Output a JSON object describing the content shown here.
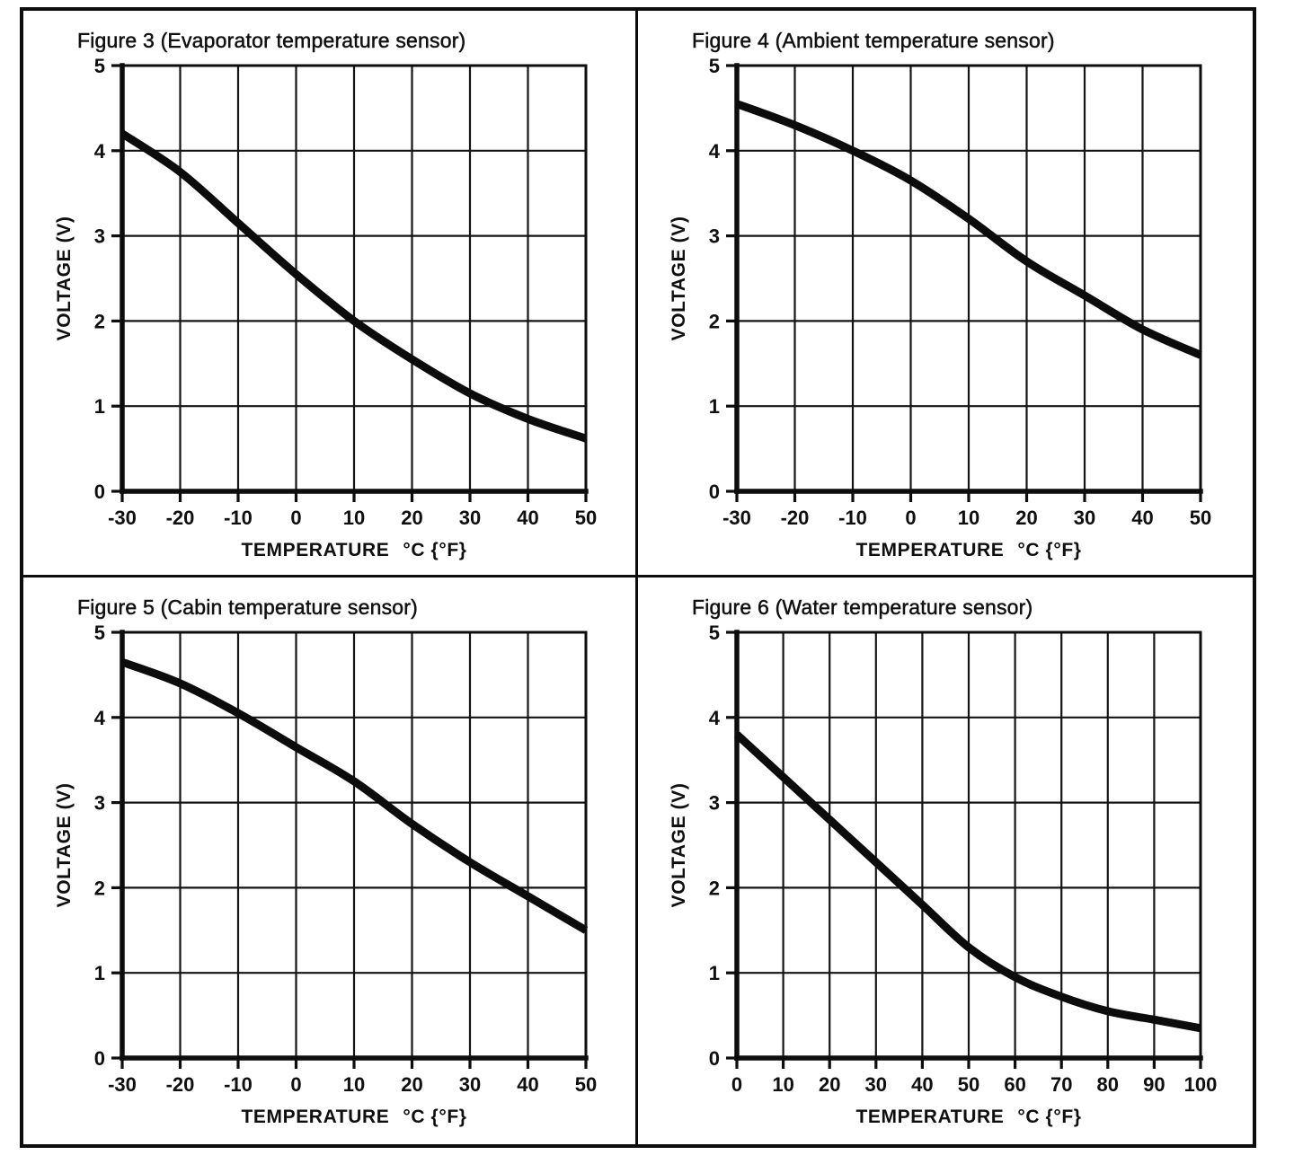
{
  "page": {
    "background": "#ffffff",
    "ink": "#111111",
    "description_visible_text_only": "Four temperature-sensor voltage curves in a bordered 2x2 grid"
  },
  "chart_data": [
    {
      "type": "line",
      "figure": "Figure 3 (Evaporator temperature sensor)",
      "xlabel": "TEMPERATURE",
      "xunit": "°C {°F}",
      "ylabel": "VOLTAGE (V)",
      "xlim": [
        -30,
        50
      ],
      "ylim": [
        0,
        5
      ],
      "xticks": [
        -30,
        -20,
        -10,
        0,
        10,
        20,
        30,
        40,
        50
      ],
      "yticks": [
        0,
        1,
        2,
        3,
        4,
        5
      ],
      "grid": true,
      "legend": "none",
      "x": [
        -30,
        -20,
        -10,
        0,
        10,
        20,
        30,
        40,
        50
      ],
      "y": [
        4.2,
        3.75,
        3.15,
        2.55,
        2.0,
        1.55,
        1.15,
        0.85,
        0.62
      ]
    },
    {
      "type": "line",
      "figure": "Figure 4 (Ambient temperature sensor)",
      "xlabel": "TEMPERATURE",
      "xunit": "°C {°F}",
      "ylabel": "VOLTAGE (V)",
      "xlim": [
        -30,
        50
      ],
      "ylim": [
        0,
        5
      ],
      "xticks": [
        -30,
        -20,
        -10,
        0,
        10,
        20,
        30,
        40,
        50
      ],
      "yticks": [
        0,
        1,
        2,
        3,
        4,
        5
      ],
      "grid": true,
      "legend": "none",
      "x": [
        -30,
        -20,
        -10,
        0,
        10,
        20,
        30,
        40,
        50
      ],
      "y": [
        4.55,
        4.3,
        4.0,
        3.65,
        3.2,
        2.7,
        2.3,
        1.9,
        1.6
      ]
    },
    {
      "type": "line",
      "figure": "Figure 5 (Cabin temperature sensor)",
      "xlabel": "TEMPERATURE",
      "xunit": "°C {°F}",
      "ylabel": "VOLTAGE (V)",
      "xlim": [
        -30,
        50
      ],
      "ylim": [
        0,
        5
      ],
      "xticks": [
        -30,
        -20,
        -10,
        0,
        10,
        20,
        30,
        40,
        50
      ],
      "yticks": [
        0,
        1,
        2,
        3,
        4,
        5
      ],
      "grid": true,
      "legend": "none",
      "x": [
        -30,
        -20,
        -10,
        0,
        10,
        20,
        30,
        40,
        50
      ],
      "y": [
        4.65,
        4.4,
        4.05,
        3.65,
        3.25,
        2.75,
        2.3,
        1.9,
        1.5
      ]
    },
    {
      "type": "line",
      "figure": "Figure 6 (Water temperature sensor)",
      "xlabel": "TEMPERATURE",
      "xunit": "°C {°F}",
      "ylabel": "VOLTAGE (V)",
      "xlim": [
        0,
        100
      ],
      "ylim": [
        0,
        5
      ],
      "xticks": [
        0,
        10,
        20,
        30,
        40,
        50,
        60,
        70,
        80,
        90,
        100
      ],
      "yticks": [
        0,
        1,
        2,
        3,
        4,
        5
      ],
      "grid": true,
      "legend": "none",
      "x": [
        0,
        10,
        20,
        30,
        40,
        50,
        60,
        70,
        80,
        90,
        100
      ],
      "y": [
        3.8,
        3.3,
        2.8,
        2.3,
        1.8,
        1.3,
        0.95,
        0.72,
        0.55,
        0.45,
        0.35
      ]
    }
  ]
}
